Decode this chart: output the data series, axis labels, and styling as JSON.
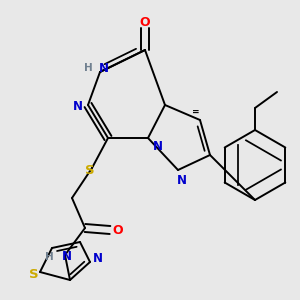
{
  "bg_color": "#e8e8e8",
  "atom_colors": {
    "C": "#000000",
    "N": "#0000cc",
    "O": "#ff0000",
    "S": "#ccaa00",
    "H": "#708090"
  }
}
